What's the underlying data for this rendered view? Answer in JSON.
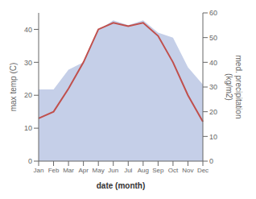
{
  "chart_data": {
    "type": "line",
    "categories": [
      "Jan",
      "Feb",
      "Mar",
      "Apr",
      "May",
      "Jun",
      "Jul",
      "Aug",
      "Sep",
      "Oct",
      "Nov",
      "Dec"
    ],
    "xlabel": "date (month)",
    "ylabel": "max temp (C)",
    "y2label": "med. precipitation\n(kg/m2)",
    "series": [
      {
        "type": "area",
        "axis": "y2",
        "color": "#c5cfe8",
        "values": [
          29,
          29,
          37,
          40,
          53,
          57,
          55,
          57,
          52,
          50,
          38,
          31
        ]
      },
      {
        "type": "line",
        "color": "#c0504d",
        "values": [
          13,
          15,
          22,
          30,
          40,
          42,
          41,
          42,
          38,
          30,
          20,
          12
        ]
      }
    ],
    "ylim": [
      0,
      45
    ],
    "yticks": [
      0,
      10,
      20,
      30,
      40
    ],
    "y2lim": [
      0,
      60
    ],
    "y2ticks": [
      0,
      10,
      20,
      30,
      40,
      50,
      60
    ]
  }
}
